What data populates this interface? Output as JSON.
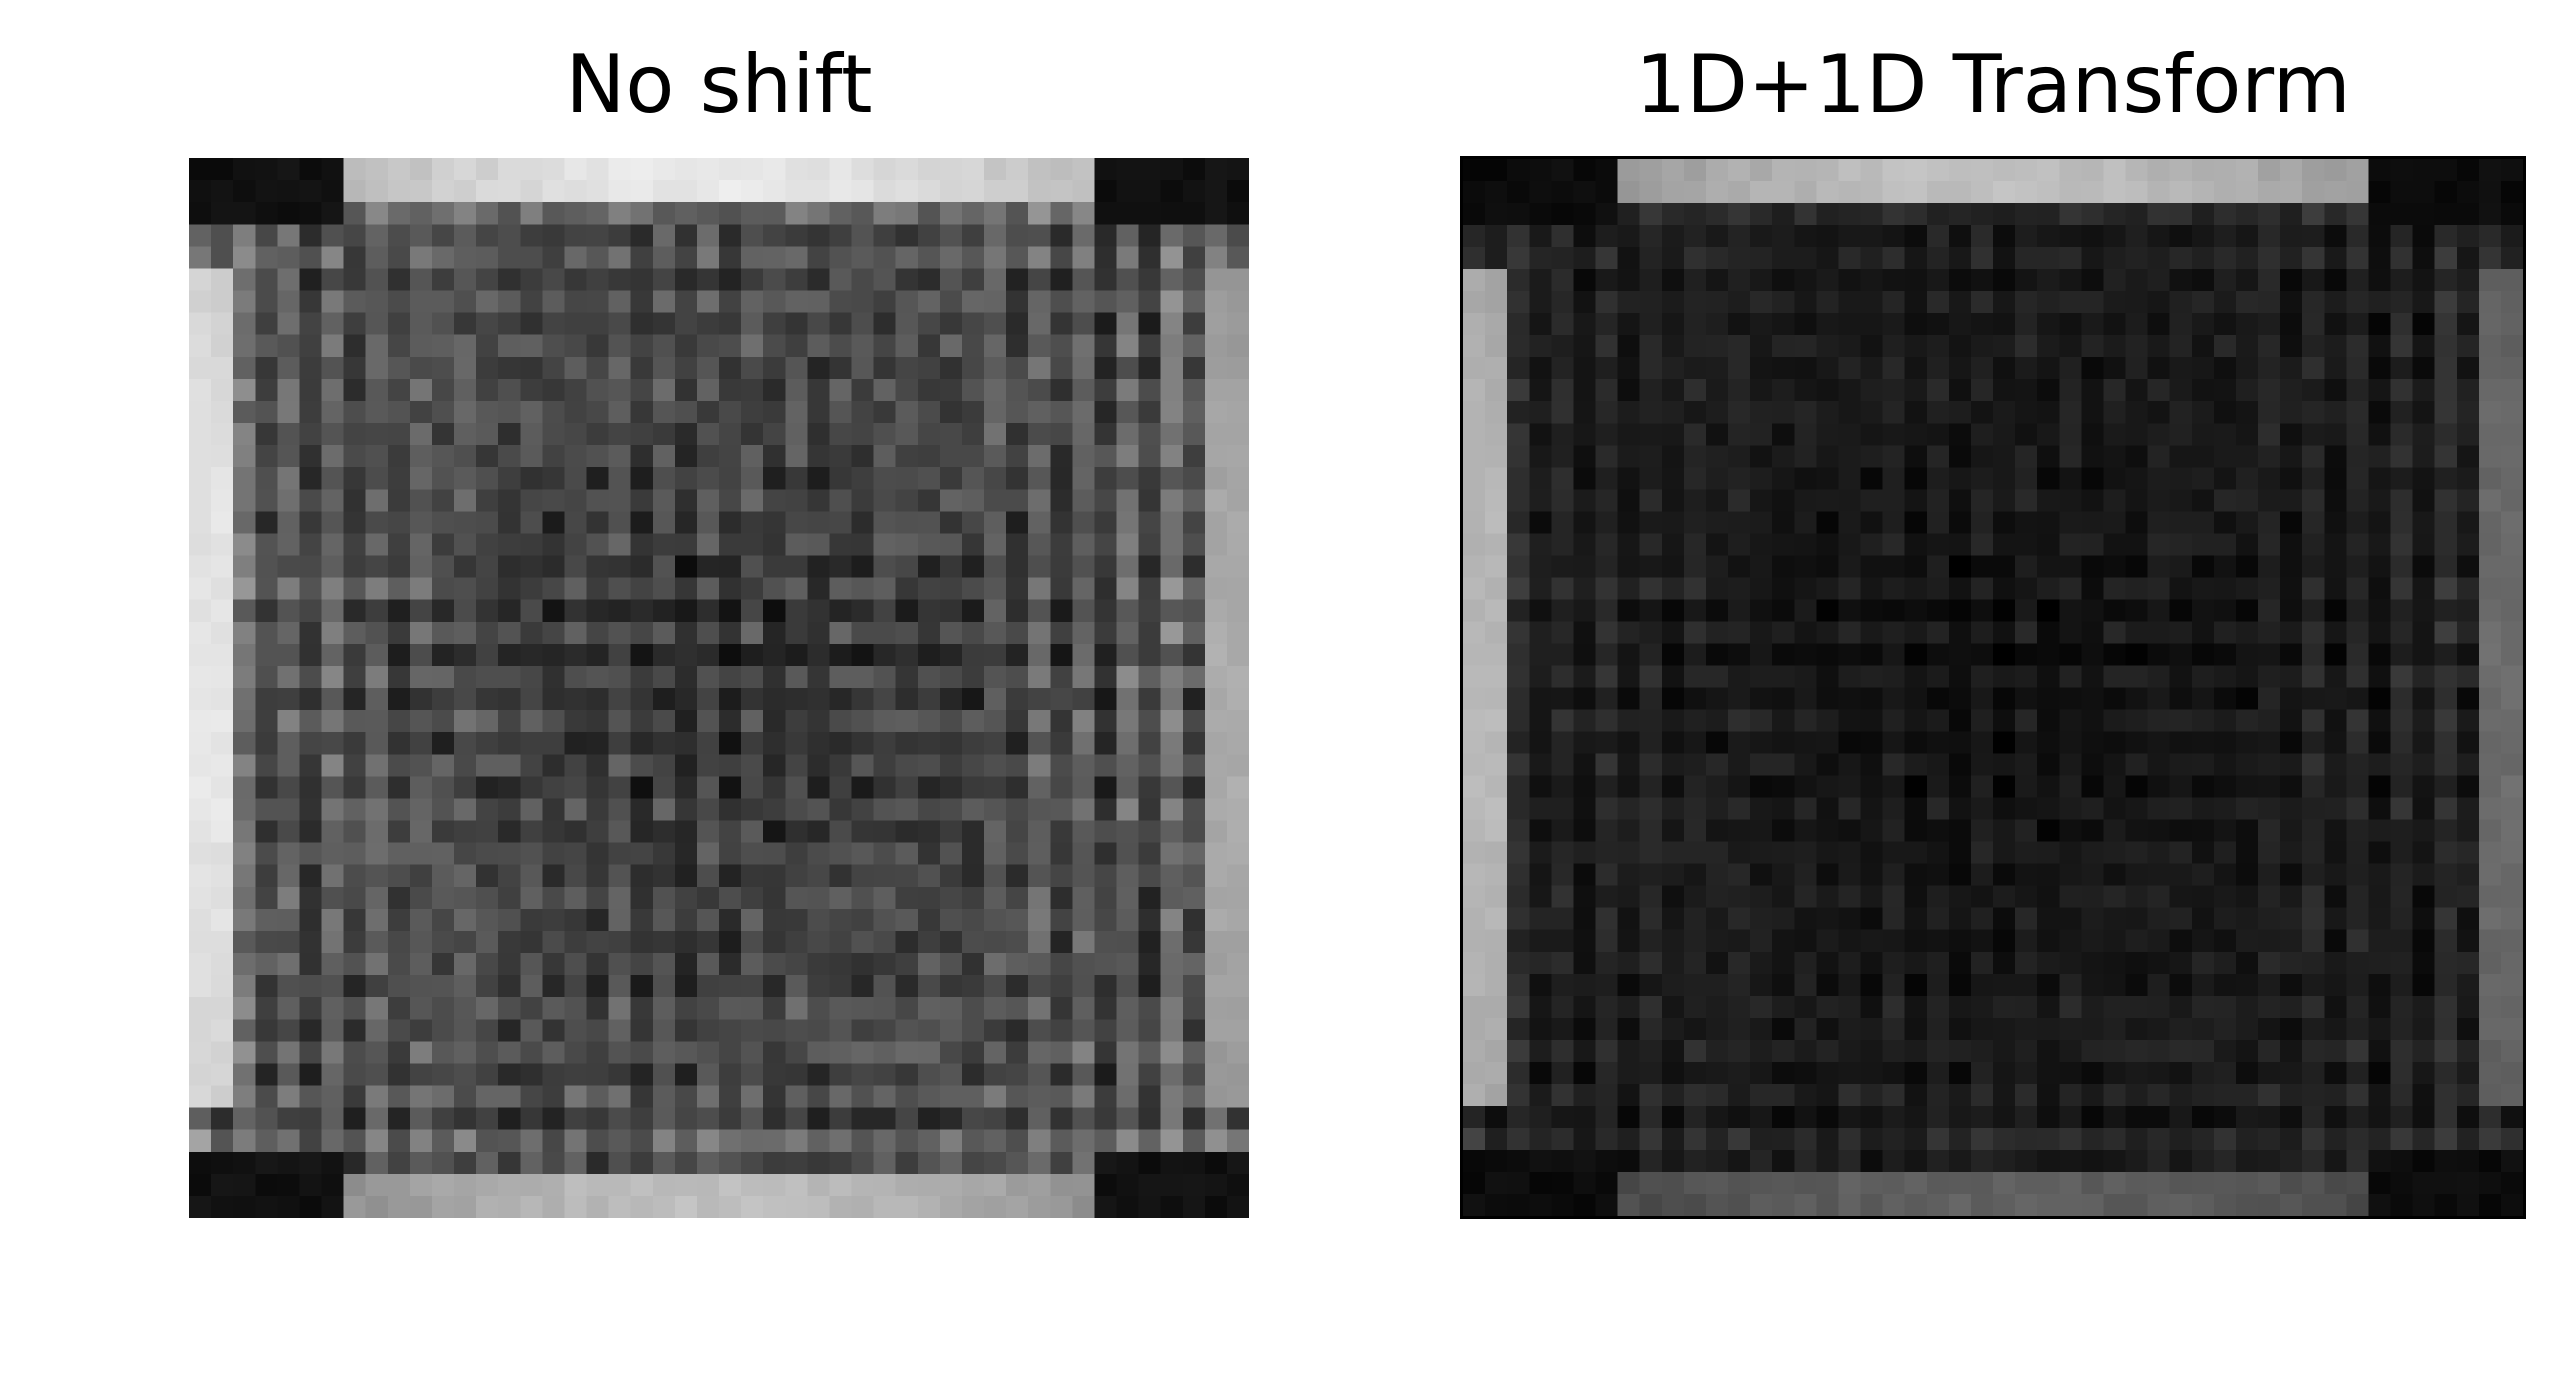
{
  "chart_data": [
    {
      "type": "heatmap",
      "title": "No shift",
      "colormap": "gray",
      "grid": false,
      "axes_visible": false,
      "grid_size": [
        48,
        48
      ],
      "value_range": [
        0,
        1
      ],
      "pattern": {
        "corner_blocks_level": 0.04,
        "top_edge_level": 0.88,
        "bottom_edge_level": 0.72,
        "left_edge_level": 0.88,
        "right_edge_level": 0.65,
        "interior_mean": 0.28,
        "interior_texture_amplitude": 0.22,
        "center_dip": 0.12
      }
    },
    {
      "type": "heatmap",
      "title": "1D+1D Transform",
      "colormap": "gray",
      "grid": false,
      "axes_visible": false,
      "grid_size": [
        48,
        48
      ],
      "value_range": [
        0,
        1
      ],
      "pattern": {
        "corner_blocks_level": 0.02,
        "top_edge_level": 0.72,
        "bottom_edge_level": 0.35,
        "left_edge_level": 0.7,
        "right_edge_level": 0.4,
        "interior_mean": 0.1,
        "interior_texture_amplitude": 0.1,
        "center_dip": 0.05
      }
    }
  ]
}
